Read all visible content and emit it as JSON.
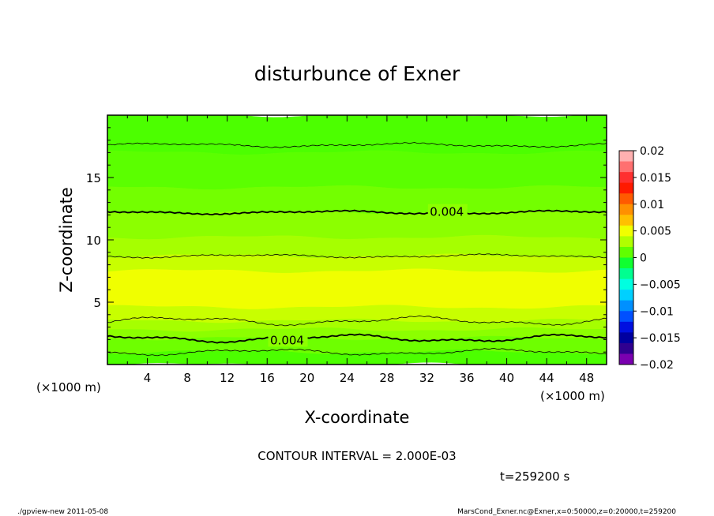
{
  "chart_data": {
    "type": "contour",
    "title": "disturbunce of Exner",
    "xlabel": "X-coordinate",
    "ylabel": "Z-coordinate",
    "x_unit_label": "(×1000 m)",
    "x_unit_label_right": "(×1000 m)",
    "x_ticks": [
      4,
      8,
      12,
      16,
      20,
      24,
      28,
      32,
      36,
      40,
      44,
      48
    ],
    "xlim": [
      0,
      50
    ],
    "y_ticks": [
      5,
      10,
      15
    ],
    "ylim": [
      0,
      20
    ],
    "contour_interval_text": "CONTOUR INTERVAL = 2.000E-03",
    "time_text": "t=259200 s",
    "contour_labels": [
      {
        "text": "0.004",
        "x": 34,
        "z": 12.3
      },
      {
        "text": "0.004",
        "x": 18,
        "z": 2.0
      }
    ],
    "contour_levels": [
      {
        "value": 0.002,
        "z_base": 17.6,
        "wave_amp": 0.12,
        "bold": false
      },
      {
        "value": 0.004,
        "z_base": 12.2,
        "wave_amp": 0.1,
        "bold": true
      },
      {
        "value": 0.006,
        "z_base": 8.7,
        "wave_amp": 0.1,
        "bold": false
      },
      {
        "value": 0.006,
        "z_base": 3.5,
        "wave_amp": 0.25,
        "bold": false
      },
      {
        "value": 0.004,
        "z_base": 2.1,
        "wave_amp": 0.22,
        "bold": true
      },
      {
        "value": 0.002,
        "z_base": 1.0,
        "wave_amp": 0.18,
        "bold": false
      }
    ],
    "shading_bands": [
      {
        "z_from": 17.0,
        "z_to": 20.0,
        "color": "#4cff00"
      },
      {
        "z_from": 14.2,
        "z_to": 17.0,
        "color": "#5bff00"
      },
      {
        "z_from": 12.2,
        "z_to": 14.2,
        "color": "#73ff00"
      },
      {
        "z_from": 10.2,
        "z_to": 12.2,
        "color": "#8cff00"
      },
      {
        "z_from": 8.7,
        "z_to": 10.2,
        "color": "#a6ff00"
      },
      {
        "z_from": 7.5,
        "z_to": 8.7,
        "color": "#c8ff00"
      },
      {
        "z_from": 4.6,
        "z_to": 7.5,
        "color": "#f0ff00"
      },
      {
        "z_from": 3.5,
        "z_to": 4.6,
        "color": "#c8ff00"
      },
      {
        "z_from": 2.8,
        "z_to": 3.5,
        "color": "#a6ff00"
      },
      {
        "z_from": 2.1,
        "z_to": 2.8,
        "color": "#8cff00"
      },
      {
        "z_from": 1.0,
        "z_to": 2.1,
        "color": "#6eff00"
      },
      {
        "z_from": 0.0,
        "z_to": 1.0,
        "color": "#4cff00"
      }
    ],
    "colorbar": {
      "tick_labels": [
        "0.02",
        "0.015",
        "0.01",
        "0.005",
        "0",
        "−0.005",
        "−0.01",
        "−0.015",
        "−0.02"
      ],
      "tick_values": [
        0.02,
        0.015,
        0.01,
        0.005,
        0,
        -0.005,
        -0.01,
        -0.015,
        -0.02
      ],
      "range": [
        -0.02,
        0.02
      ],
      "colors_top_to_bottom": [
        "#ffb0b0",
        "#ff7070",
        "#ff3030",
        "#ff1a00",
        "#ff5a00",
        "#ff9000",
        "#ffc000",
        "#f0ff00",
        "#b0ff00",
        "#60ff00",
        "#10ff30",
        "#00ff90",
        "#00ffe0",
        "#00d0ff",
        "#0090ff",
        "#0050ff",
        "#0010e0",
        "#0000a0",
        "#300090",
        "#7a00b0"
      ]
    }
  },
  "footer": {
    "left": "./gpview-new  2011-05-08",
    "right": "MarsCond_Exner.nc@Exner,x=0:50000,z=0:20000,t=259200"
  }
}
